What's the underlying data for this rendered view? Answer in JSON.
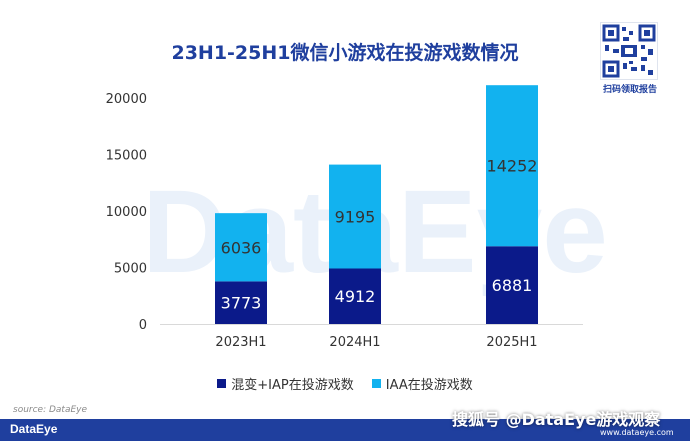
{
  "chart_data": {
    "type": "bar",
    "stacked": true,
    "title": "23H1-25H1微信小游戏在投游戏数情况",
    "categories": [
      "2023H1",
      "2024H1",
      "2025H1"
    ],
    "series": [
      {
        "name": "混变+IAP在投游戏数",
        "values": [
          3773,
          4912,
          6881
        ],
        "color": "#0b1a8a"
      },
      {
        "name": "IAA在投游戏数",
        "values": [
          6036,
          9195,
          14252
        ],
        "color": "#12b2ef"
      }
    ],
    "ylim": [
      0,
      20000
    ],
    "yticks": [
      0,
      5000,
      10000,
      15000,
      20000
    ],
    "grid": false,
    "legend": "bottom"
  },
  "watermark_bg": "DataEye",
  "qr_label": "扫码领取报告",
  "source": "source: DataEye",
  "footer_logo": "DataEye",
  "overlay_watermark": "搜狐号 @DataEye游戏观察",
  "overlay_url": "www.dataeye.com"
}
